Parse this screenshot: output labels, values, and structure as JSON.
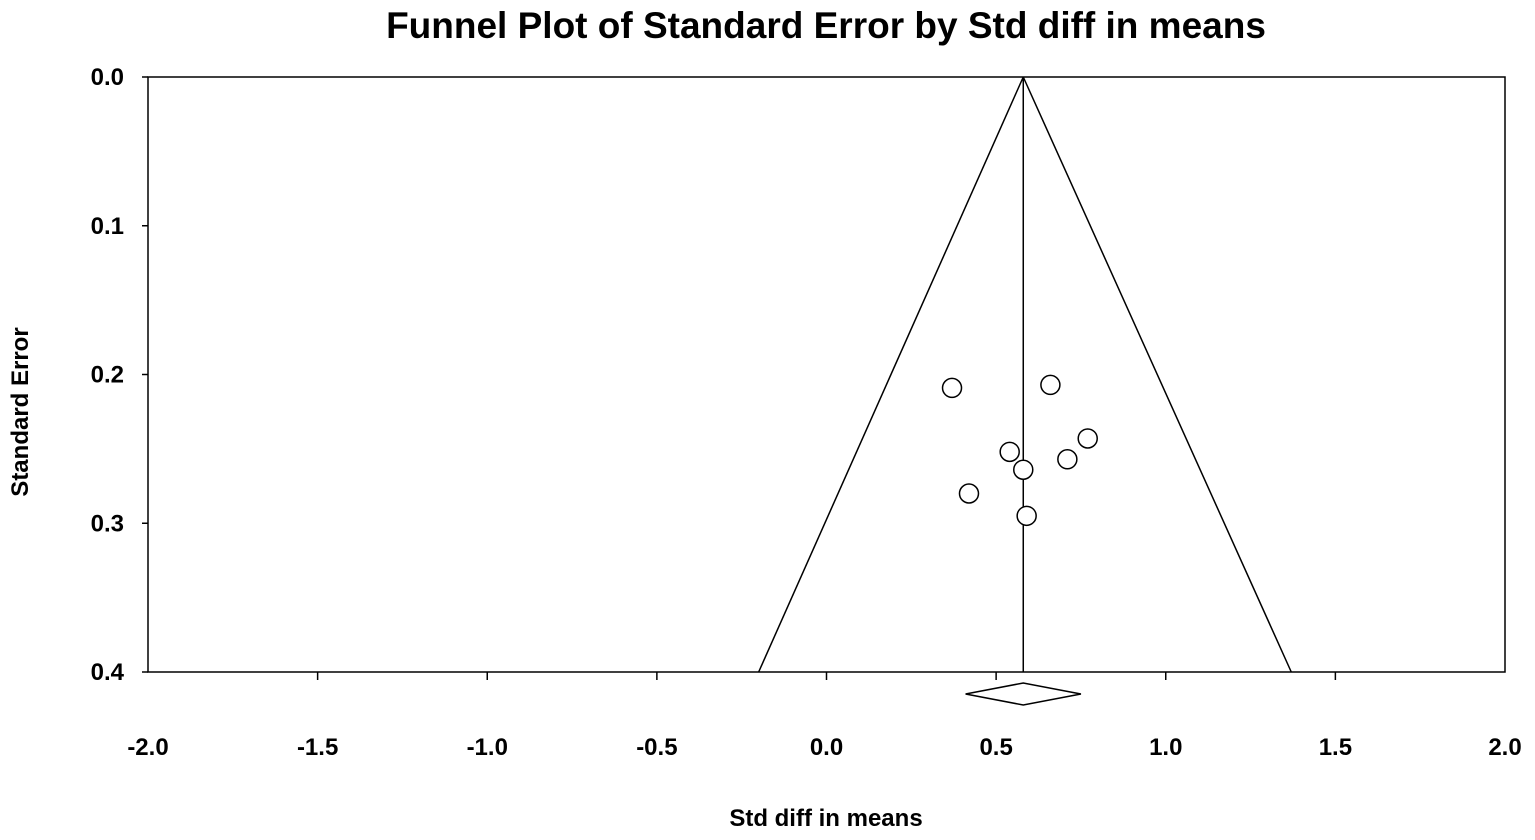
{
  "chart_data": {
    "type": "scatter",
    "title": "Funnel Plot of Standard Error by Std diff in means",
    "xlabel": "Std diff in means",
    "ylabel": "Standard Error",
    "xlim": [
      -2.0,
      2.0
    ],
    "ylim": [
      0.0,
      0.4
    ],
    "y_inverted": true,
    "x_ticks": [
      "-2.0",
      "-1.5",
      "-1.0",
      "-0.5",
      "0.0",
      "0.5",
      "1.0",
      "1.5",
      "2.0"
    ],
    "y_ticks": [
      "0.0",
      "0.1",
      "0.2",
      "0.3",
      "0.4"
    ],
    "grid": false,
    "legend": "none",
    "pooled_effect": 0.58,
    "pooled_ci": [
      0.41,
      0.75
    ],
    "funnel": {
      "apex": {
        "x": 0.58,
        "y": 0.0
      },
      "bottom_left": {
        "x": -0.2,
        "y": 0.4
      },
      "bottom_right": {
        "x": 1.37,
        "y": 0.4
      }
    },
    "points": [
      {
        "x": 0.37,
        "y": 0.209
      },
      {
        "x": 0.66,
        "y": 0.207
      },
      {
        "x": 0.77,
        "y": 0.243
      },
      {
        "x": 0.54,
        "y": 0.252
      },
      {
        "x": 0.71,
        "y": 0.257
      },
      {
        "x": 0.58,
        "y": 0.264
      },
      {
        "x": 0.42,
        "y": 0.28
      },
      {
        "x": 0.59,
        "y": 0.295
      }
    ],
    "colors": {
      "line": "#000000",
      "marker_fill": "#ffffff",
      "marker_stroke": "#000000",
      "background": "#ffffff"
    }
  }
}
